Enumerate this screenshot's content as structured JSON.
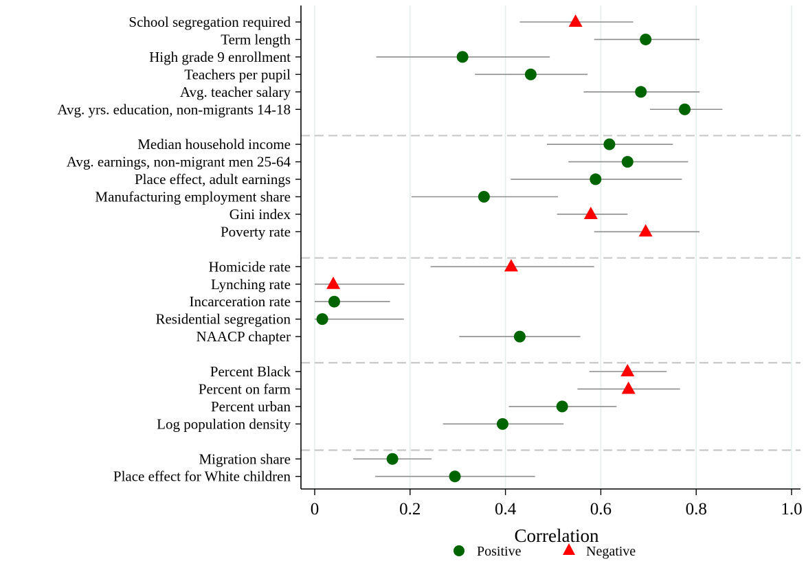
{
  "chart_data": {
    "type": "scatter",
    "xlabel": "Correlation",
    "xlim": [
      -0.03,
      1.03
    ],
    "xticks": [
      0,
      0.2,
      0.4,
      0.6,
      0.8,
      1.0
    ],
    "xtick_labels": [
      "0",
      "0.2",
      "0.4",
      "0.6",
      "0.8",
      "1.0"
    ],
    "grid": "vertical",
    "legend": {
      "placement": "bottom-center",
      "entries": [
        "Positive",
        "Negative"
      ]
    },
    "colors": {
      "Positive": "#006400",
      "Negative": "#ff0000",
      "ci": "#8c8c8c",
      "grid": "#e4efe9",
      "separator": "#c8c8c8"
    },
    "groups": [
      {
        "rows": [
          {
            "label": "School segregation required",
            "value": 0.547,
            "ci": [
              0.43,
              0.668
            ],
            "sign": "Negative"
          },
          {
            "label": "Term length",
            "value": 0.694,
            "ci": [
              0.586,
              0.807
            ],
            "sign": "Positive"
          },
          {
            "label": "High grade 9 enrollment",
            "value": 0.31,
            "ci": [
              0.129,
              0.493
            ],
            "sign": "Positive"
          },
          {
            "label": "Teachers per pupil",
            "value": 0.453,
            "ci": [
              0.336,
              0.572
            ],
            "sign": "Positive"
          },
          {
            "label": "Avg. teacher salary",
            "value": 0.684,
            "ci": [
              0.564,
              0.807
            ],
            "sign": "Positive"
          },
          {
            "label": "Avg. yrs. education, non-migrants 14-18",
            "value": 0.776,
            "ci": [
              0.703,
              0.855
            ],
            "sign": "Positive"
          }
        ]
      },
      {
        "rows": [
          {
            "label": "Median household income",
            "value": 0.618,
            "ci": [
              0.487,
              0.751
            ],
            "sign": "Positive"
          },
          {
            "label": "Avg. earnings, non-migrant men 25-64",
            "value": 0.656,
            "ci": [
              0.532,
              0.783
            ],
            "sign": "Positive"
          },
          {
            "label": "Place effect, adult earnings",
            "value": 0.589,
            "ci": [
              0.411,
              0.77
            ],
            "sign": "Positive"
          },
          {
            "label": "Manufacturing employment share",
            "value": 0.355,
            "ci": [
              0.203,
              0.51
            ],
            "sign": "Positive"
          },
          {
            "label": "Gini index",
            "value": 0.579,
            "ci": [
              0.508,
              0.656
            ],
            "sign": "Negative"
          },
          {
            "label": "Poverty rate",
            "value": 0.694,
            "ci": [
              0.586,
              0.807
            ],
            "sign": "Negative"
          }
        ]
      },
      {
        "rows": [
          {
            "label": "Homicide rate",
            "value": 0.412,
            "ci": [
              0.243,
              0.586
            ],
            "sign": "Negative"
          },
          {
            "label": "Lynching rate",
            "value": 0.039,
            "ci": [
              0.0,
              0.188
            ],
            "sign": "Negative"
          },
          {
            "label": "Incarceration rate",
            "value": 0.041,
            "ci": [
              0.0,
              0.158
            ],
            "sign": "Positive"
          },
          {
            "label": "Residential segregation",
            "value": 0.016,
            "ci": [
              0.0,
              0.187
            ],
            "sign": "Positive"
          },
          {
            "label": "NAACP chapter",
            "value": 0.43,
            "ci": [
              0.303,
              0.557
            ],
            "sign": "Positive"
          }
        ]
      },
      {
        "rows": [
          {
            "label": "Percent Black",
            "value": 0.656,
            "ci": [
              0.576,
              0.738
            ],
            "sign": "Negative"
          },
          {
            "label": "Percent on farm",
            "value": 0.658,
            "ci": [
              0.551,
              0.766
            ],
            "sign": "Negative"
          },
          {
            "label": "Percent urban",
            "value": 0.519,
            "ci": [
              0.407,
              0.633
            ],
            "sign": "Positive"
          },
          {
            "label": "Log population density",
            "value": 0.394,
            "ci": [
              0.269,
              0.522
            ],
            "sign": "Positive"
          }
        ]
      },
      {
        "rows": [
          {
            "label": "Migration share",
            "value": 0.163,
            "ci": [
              0.081,
              0.245
            ],
            "sign": "Positive"
          },
          {
            "label": "Place effect for White children",
            "value": 0.294,
            "ci": [
              0.127,
              0.462
            ],
            "sign": "Positive"
          }
        ]
      }
    ]
  }
}
